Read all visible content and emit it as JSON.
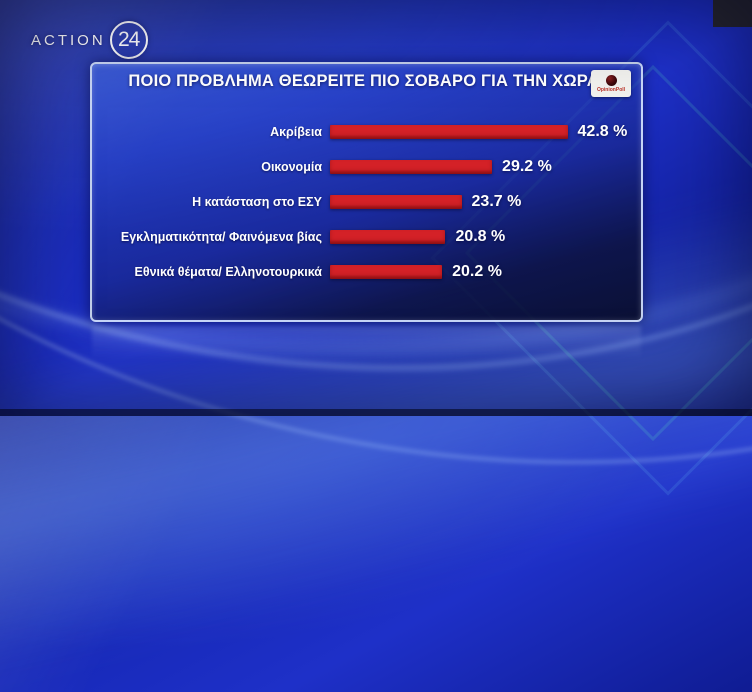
{
  "channel": {
    "logo_text": "ACTION",
    "logo_number": "24"
  },
  "poll_badge": {
    "name": "OpinionPoll"
  },
  "chart_data": {
    "type": "bar",
    "orientation": "horizontal",
    "title": "ΠΟΙΟ ΠΡΟΒΛΗΜΑ ΘΕΩΡΕΙΤΕ ΠΙΟ ΣΟΒΑΡΟ ΓΙΑ ΤΗΝ ΧΩΡΑ;",
    "categories": [
      "Ακρίβεια",
      "Οικονομία",
      "Η κατάσταση στο ΕΣΥ",
      "Εγκληματικότητα/ Φαινόμενα βίας",
      "Εθνικά θέματα/ Ελληνοτουρκικά"
    ],
    "values": [
      42.8,
      29.2,
      23.7,
      20.8,
      20.2
    ],
    "value_labels": [
      "42.8 %",
      "29.2 %",
      "23.7 %",
      "20.8 %",
      "20.2 %"
    ],
    "bar_color": "#d42127",
    "xlim": [
      0,
      45
    ],
    "grid": false,
    "legend": "none"
  }
}
